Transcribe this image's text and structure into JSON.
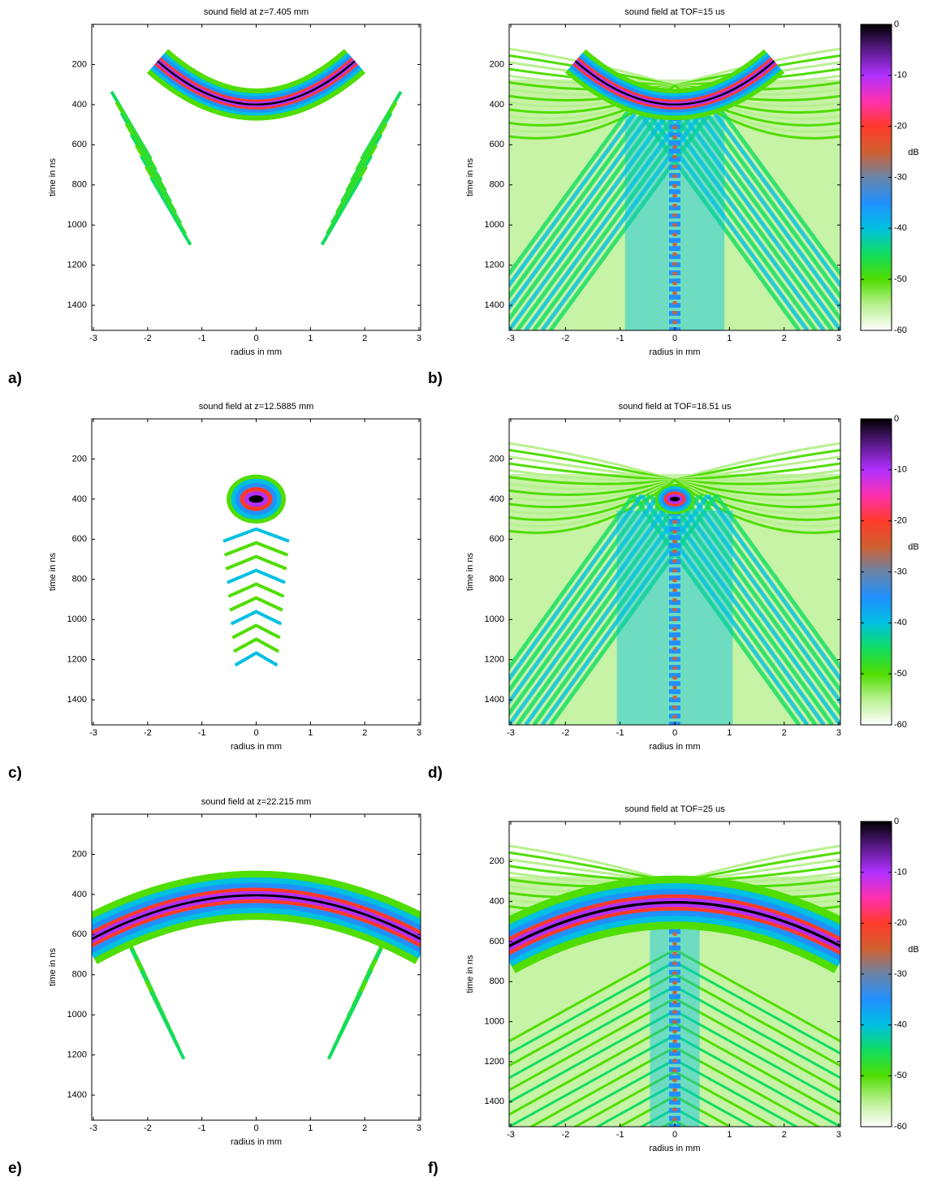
{
  "chart_data": [
    {
      "type": "heatmap",
      "panel_label": "a)",
      "title": "sound field at z=7.405 mm",
      "x_label": "radius in mm",
      "y_label": "time in ns",
      "xlim": [
        -3.03,
        3.03
      ],
      "ylim": [
        0,
        1525
      ],
      "xticks": [
        -3,
        -2,
        -1,
        0,
        1,
        2,
        3
      ],
      "yticks": [
        200,
        400,
        600,
        800,
        1000,
        1200,
        1400
      ],
      "colormap": [
        "#000000",
        "#5a1a8a",
        "#b030ff",
        "#ff30b0",
        "#ff3a2a",
        "#d06030",
        "#6a84a8",
        "#2090ff",
        "#00c0e0",
        "#10dd60",
        "#50dd00",
        "#b8f090",
        "#ffffff"
      ]
    },
    {
      "type": "heatmap",
      "panel_label": "b)",
      "title": "sound field at TOF=15 us",
      "x_label": "radius in mm",
      "y_label": "time in ns",
      "xlim": [
        -3.03,
        3.03
      ],
      "ylim": [
        0,
        1525
      ],
      "xticks": [
        -3,
        -2,
        -1,
        0,
        1,
        2,
        3
      ],
      "yticks": [
        200,
        400,
        600,
        800,
        1000,
        1200,
        1400
      ],
      "colormap": [
        "#000000",
        "#5a1a8a",
        "#b030ff",
        "#ff30b0",
        "#ff3a2a",
        "#d06030",
        "#6a84a8",
        "#2090ff",
        "#00c0e0",
        "#10dd60",
        "#50dd00",
        "#b8f090",
        "#ffffff"
      ],
      "colorbar": {
        "label": "dB",
        "lim": [
          0,
          -60
        ],
        "ticks": [
          0,
          -10,
          -20,
          -30,
          -40,
          -50,
          -60
        ]
      }
    },
    {
      "type": "heatmap",
      "panel_label": "c)",
      "title": "sound field at z=12.5885 mm",
      "x_label": "radius in mm",
      "y_label": "time in ns",
      "xlim": [
        -3.03,
        3.03
      ],
      "ylim": [
        0,
        1525
      ],
      "xticks": [
        -3,
        -2,
        -1,
        0,
        1,
        2,
        3
      ],
      "yticks": [
        200,
        400,
        600,
        800,
        1000,
        1200,
        1400
      ],
      "colormap": [
        "#000000",
        "#5a1a8a",
        "#b030ff",
        "#ff30b0",
        "#ff3a2a",
        "#d06030",
        "#6a84a8",
        "#2090ff",
        "#00c0e0",
        "#10dd60",
        "#50dd00",
        "#b8f090",
        "#ffffff"
      ]
    },
    {
      "type": "heatmap",
      "panel_label": "d)",
      "title": "sound field at TOF=18.51 us",
      "x_label": "radius in mm",
      "y_label": "time in ns",
      "xlim": [
        -3.03,
        3.03
      ],
      "ylim": [
        0,
        1525
      ],
      "xticks": [
        -3,
        -2,
        -1,
        0,
        1,
        2,
        3
      ],
      "yticks": [
        200,
        400,
        600,
        800,
        1000,
        1200,
        1400
      ],
      "colormap": [
        "#000000",
        "#5a1a8a",
        "#b030ff",
        "#ff30b0",
        "#ff3a2a",
        "#d06030",
        "#6a84a8",
        "#2090ff",
        "#00c0e0",
        "#10dd60",
        "#50dd00",
        "#b8f090",
        "#ffffff"
      ],
      "colorbar": {
        "label": "dB",
        "lim": [
          0,
          -60
        ],
        "ticks": [
          0,
          -10,
          -20,
          -30,
          -40,
          -50,
          -60
        ]
      }
    },
    {
      "type": "heatmap",
      "panel_label": "e)",
      "title": "sound field at z=22.215 mm",
      "x_label": "radius in mm",
      "y_label": "time in ns",
      "xlim": [
        -3.03,
        3.03
      ],
      "ylim": [
        0,
        1525
      ],
      "xticks": [
        -3,
        -2,
        -1,
        0,
        1,
        2,
        3
      ],
      "yticks": [
        200,
        400,
        600,
        800,
        1000,
        1200,
        1400
      ],
      "colormap": [
        "#000000",
        "#5a1a8a",
        "#b030ff",
        "#ff30b0",
        "#ff3a2a",
        "#d06030",
        "#6a84a8",
        "#2090ff",
        "#00c0e0",
        "#10dd60",
        "#50dd00",
        "#b8f090",
        "#ffffff"
      ]
    },
    {
      "type": "heatmap",
      "panel_label": "f)",
      "title": "sound field at TOF=25 us",
      "x_label": "radius in mm",
      "y_label": "time in ns",
      "xlim": [
        -3.03,
        3.03
      ],
      "ylim": [
        0,
        1525
      ],
      "xticks": [
        -3,
        -2,
        -1,
        0,
        1,
        2,
        3
      ],
      "yticks": [
        200,
        400,
        600,
        800,
        1000,
        1200,
        1400
      ],
      "colormap": [
        "#000000",
        "#5a1a8a",
        "#b030ff",
        "#ff30b0",
        "#ff3a2a",
        "#d06030",
        "#6a84a8",
        "#2090ff",
        "#00c0e0",
        "#10dd60",
        "#50dd00",
        "#b8f090",
        "#ffffff"
      ],
      "colorbar": {
        "label": "dB",
        "lim": [
          0,
          -60
        ],
        "ticks": [
          0,
          -10,
          -20,
          -30,
          -40,
          -50,
          -60
        ]
      }
    }
  ]
}
